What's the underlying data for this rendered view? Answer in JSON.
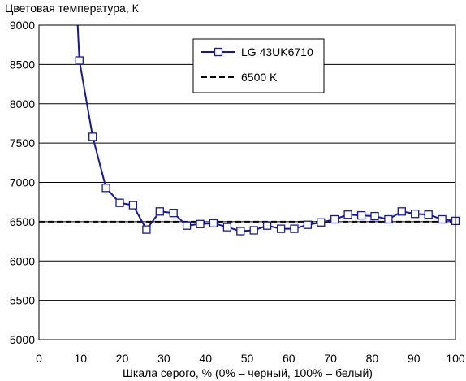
{
  "chart_data": {
    "type": "line",
    "title": "",
    "ylabel": "Цветовая температура, К",
    "xlabel": "Шкала серого, % (0% – черный, 100% – белый)",
    "xlim": [
      0,
      100
    ],
    "ylim": [
      5000,
      9000
    ],
    "x_ticks": [
      0,
      10,
      20,
      30,
      40,
      50,
      60,
      70,
      80,
      90,
      100
    ],
    "y_ticks": [
      5000,
      5500,
      6000,
      6500,
      7000,
      7500,
      8000,
      8500,
      9000
    ],
    "grid": "horizontal",
    "legend_position": "top-right",
    "series": [
      {
        "name": "LG 43UK6710",
        "color": "#1515b0",
        "marker": "square",
        "x": [
          9.7,
          12.9,
          16.1,
          19.4,
          22.6,
          25.8,
          29.0,
          32.3,
          35.5,
          38.7,
          41.9,
          45.2,
          48.4,
          51.6,
          54.8,
          58.1,
          61.3,
          64.5,
          67.7,
          71.0,
          74.2,
          77.4,
          80.6,
          83.9,
          87.1,
          90.3,
          93.5,
          96.8,
          100.0
        ],
        "y": [
          8550,
          7580,
          6930,
          6740,
          6710,
          6400,
          6630,
          6610,
          6450,
          6470,
          6480,
          6430,
          6380,
          6390,
          6450,
          6410,
          6410,
          6460,
          6490,
          6530,
          6590,
          6580,
          6570,
          6530,
          6630,
          6600,
          6590,
          6530,
          6510
        ],
        "line_start": {
          "x": 9.3,
          "y": 9000
        }
      },
      {
        "name": "6500 K",
        "color": "#000000",
        "style": "dashed",
        "x": [
          0,
          100
        ],
        "y": [
          6500,
          6500
        ]
      }
    ]
  }
}
